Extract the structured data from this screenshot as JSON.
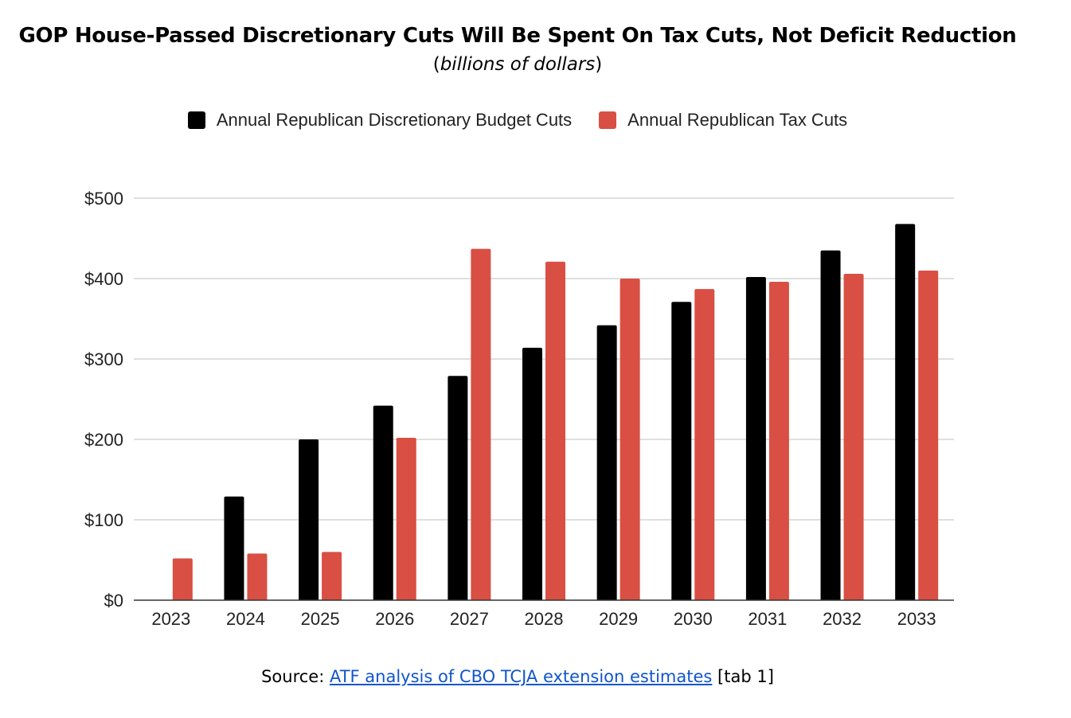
{
  "title": "GOP House-Passed Discretionary Cuts Will Be Spent On Tax Cuts, Not Deficit Reduction",
  "subtitle_open": "(",
  "subtitle_text": "billions of dollars",
  "subtitle_close": ")",
  "source": {
    "prefix": "Source: ",
    "link_text": "ATF analysis of CBO TCJA extension estimates",
    "suffix": " [tab 1]"
  },
  "colors": {
    "discretionary": "#000000",
    "tax": "#d94f43",
    "grid": "#cccccc",
    "axis": "#333333"
  },
  "chart_data": {
    "type": "bar",
    "categories": [
      "2023",
      "2024",
      "2025",
      "2026",
      "2027",
      "2028",
      "2029",
      "2030",
      "2031",
      "2032",
      "2033"
    ],
    "series": [
      {
        "name": "Annual Republican Discretionary Budget Cuts",
        "values": [
          0,
          129,
          200,
          242,
          279,
          314,
          342,
          371,
          402,
          435,
          468
        ]
      },
      {
        "name": "Annual Republican Tax Cuts",
        "values": [
          52,
          58,
          60,
          202,
          437,
          421,
          400,
          387,
          396,
          406,
          410
        ]
      }
    ],
    "ylim": [
      0,
      500
    ],
    "yticks": [
      0,
      100,
      200,
      300,
      400,
      500
    ],
    "ytick_labels": [
      "$0",
      "$100",
      "$200",
      "$300",
      "$400",
      "$500"
    ],
    "grid": true,
    "legend": "top-center"
  }
}
